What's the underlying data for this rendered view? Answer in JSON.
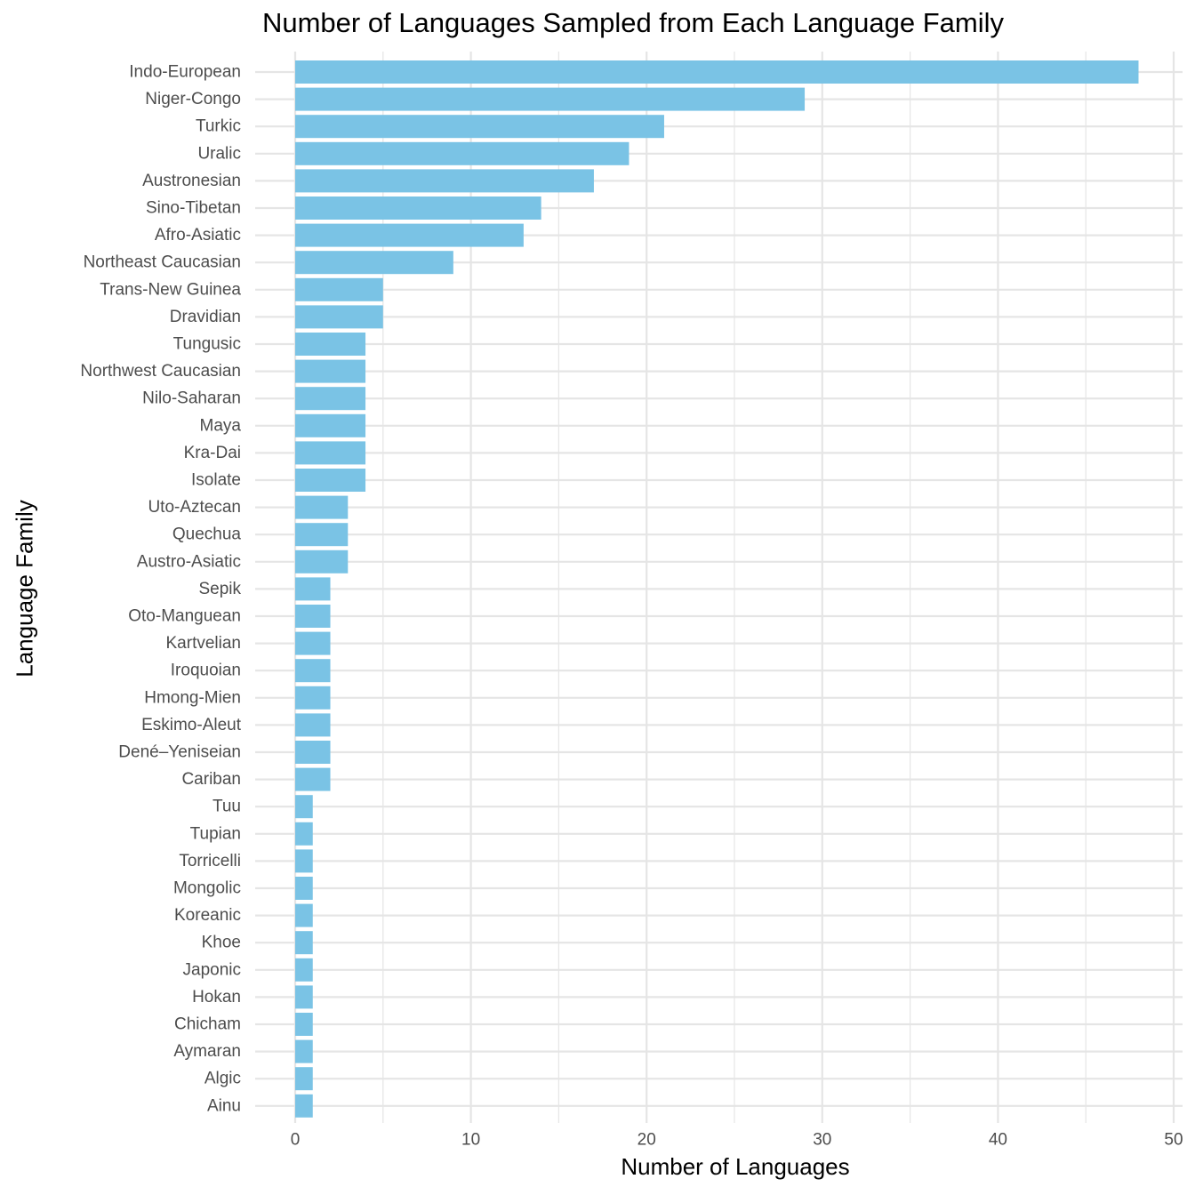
{
  "chart_data": {
    "type": "bar",
    "orientation": "horizontal",
    "title": "Number of Languages Sampled from Each Language Family",
    "xlabel": "Number of Languages",
    "ylabel": "Language Family",
    "xlim": [
      0,
      50
    ],
    "x_ticks": [
      0,
      10,
      20,
      30,
      40,
      50
    ],
    "grid": true,
    "bar_color": "#7AC3E5",
    "grid_color": "#E5E5E5",
    "categories": [
      "Indo-European",
      "Niger-Congo",
      "Turkic",
      "Uralic",
      "Austronesian",
      "Sino-Tibetan",
      "Afro-Asiatic",
      "Northeast Caucasian",
      "Trans-New Guinea",
      "Dravidian",
      "Tungusic",
      "Northwest Caucasian",
      "Nilo-Saharan",
      "Maya",
      "Kra-Dai",
      "Isolate",
      "Uto-Aztecan",
      "Quechua",
      "Austro-Asiatic",
      "Sepik",
      "Oto-Manguean",
      "Kartvelian",
      "Iroquoian",
      "Hmong-Mien",
      "Eskimo-Aleut",
      "Dené–Yeniseian",
      "Cariban",
      "Tuu",
      "Tupian",
      "Torricelli",
      "Mongolic",
      "Koreanic",
      "Khoe",
      "Japonic",
      "Hokan",
      "Chicham",
      "Aymaran",
      "Algic",
      "Ainu"
    ],
    "values": [
      48,
      29,
      21,
      19,
      17,
      14,
      13,
      9,
      5,
      5,
      4,
      4,
      4,
      4,
      4,
      4,
      3,
      3,
      3,
      2,
      2,
      2,
      2,
      2,
      2,
      2,
      2,
      1,
      1,
      1,
      1,
      1,
      1,
      1,
      1,
      1,
      1,
      1,
      1
    ]
  }
}
